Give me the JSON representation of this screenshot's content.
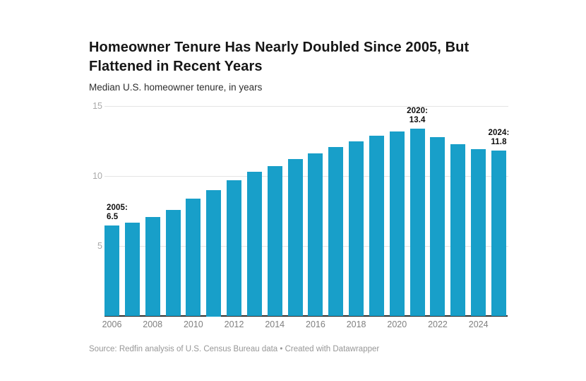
{
  "header": {
    "title": "Homeowner Tenure Has Nearly Doubled Since 2005, But Flattened in Recent Years",
    "subtitle": "Median U.S. homeowner tenure, in years"
  },
  "chart_data": {
    "type": "bar",
    "title": "Homeowner Tenure Has Nearly Doubled Since 2005, But Flattened in Recent Years",
    "subtitle": "Median U.S. homeowner tenure, in years",
    "xlabel": "",
    "ylabel": "Median U.S. homeowner tenure, in years",
    "categories": [
      "2005",
      "2006",
      "2007",
      "2008",
      "2009",
      "2010",
      "2011",
      "2012",
      "2013",
      "2014",
      "2015",
      "2016",
      "2017",
      "2018",
      "2019",
      "2020",
      "2021",
      "2022",
      "2023",
      "2024"
    ],
    "values": [
      6.5,
      6.7,
      7.1,
      7.6,
      8.4,
      9.0,
      9.7,
      10.3,
      10.7,
      11.2,
      11.6,
      12.1,
      12.5,
      12.9,
      13.2,
      13.4,
      12.8,
      12.3,
      11.9,
      11.8
    ],
    "ylim": [
      0,
      15
    ],
    "yticks": [
      5,
      10,
      15
    ],
    "xtick_labels": [
      "2006",
      "2008",
      "2010",
      "2012",
      "2014",
      "2016",
      "2018",
      "2020",
      "2022",
      "2024"
    ],
    "grid": true,
    "legend": false,
    "bar_color": "#189fc9",
    "annotations": [
      {
        "category": "2005",
        "line1": "2005:",
        "line2": "6.5",
        "align": "left"
      },
      {
        "category": "2020",
        "line1": "2020:",
        "line2": "13.4",
        "align": "center"
      },
      {
        "category": "2024",
        "line1": "2024:",
        "line2": "11.8",
        "align": "center"
      }
    ]
  },
  "footer": {
    "source": "Source: Redfin analysis of U.S. Census Bureau data • Created with Datawrapper"
  }
}
